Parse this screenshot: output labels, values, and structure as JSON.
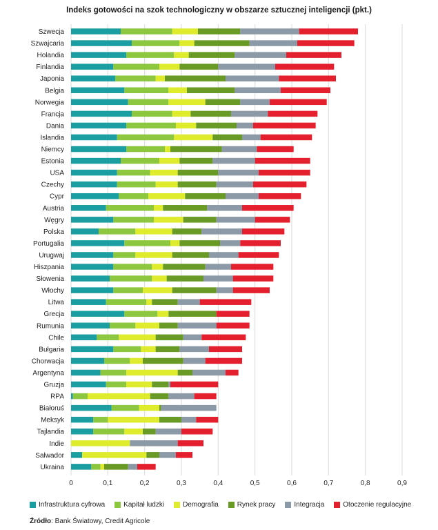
{
  "chart_data": {
    "type": "bar",
    "orientation": "horizontal",
    "stacked": true,
    "title": "Indeks gotowości na szok technologiczny w obszarze sztucznej inteligencji (pkt.)",
    "xlim": [
      0,
      0.9
    ],
    "x_ticks": [
      "0",
      "0,1",
      "0,2",
      "0,3",
      "0,4",
      "0,5",
      "0,6",
      "0,7",
      "0,8",
      "0,9"
    ],
    "grid": "vertical",
    "legend_position": "bottom",
    "categories": [
      "Szwecja",
      "Szwajcaria",
      "Holandia",
      "Finlandia",
      "Japonia",
      "Belgia",
      "Norwegia",
      "Francja",
      "Dania",
      "Islandia",
      "Niemcy",
      "Estonia",
      "USA",
      "Czechy",
      "Cypr",
      "Austria",
      "Węgry",
      "Polska",
      "Portugalia",
      "Urugwaj",
      "Hiszpania",
      "Słowenia",
      "Włochy",
      "Litwa",
      "Grecja",
      "Rumunia",
      "Chile",
      "Bułgaria",
      "Chorwacja",
      "Argentyna",
      "Gruzja",
      "RPA",
      "Białoruś",
      "Meksyk",
      "Tajlandia",
      "Indie",
      "Salwador",
      "Ukraina"
    ],
    "series": [
      {
        "name": "Infrastruktura cyfrowa",
        "color": "#1a9ea1",
        "values": [
          0.135,
          0.165,
          0.15,
          0.115,
          0.12,
          0.145,
          0.155,
          0.165,
          0.15,
          0.125,
          0.15,
          0.135,
          0.125,
          0.125,
          0.13,
          0.095,
          0.115,
          0.075,
          0.145,
          0.115,
          0.115,
          0.105,
          0.115,
          0.095,
          0.145,
          0.105,
          0.07,
          0.115,
          0.09,
          0.08,
          0.095,
          0.005,
          0.11,
          0.06,
          0.06,
          0.0,
          0.03,
          0.055
        ]
      },
      {
        "name": "Kapitał ludzki",
        "color": "#8dc63f",
        "values": [
          0.14,
          0.13,
          0.13,
          0.125,
          0.11,
          0.12,
          0.11,
          0.11,
          0.135,
          0.155,
          0.105,
          0.105,
          0.09,
          0.105,
          0.08,
          0.13,
          0.11,
          0.1,
          0.125,
          0.06,
          0.105,
          0.115,
          0.08,
          0.11,
          0.09,
          0.07,
          0.06,
          0.075,
          0.07,
          0.07,
          0.055,
          0.04,
          0.075,
          0.04,
          0.085,
          0.0,
          0.0,
          0.025
        ]
      },
      {
        "name": "Demografia",
        "color": "#dfec2d",
        "values": [
          0.07,
          0.04,
          0.04,
          0.055,
          0.025,
          0.05,
          0.1,
          0.05,
          0.055,
          0.105,
          0.015,
          0.055,
          0.075,
          0.06,
          0.1,
          0.025,
          0.08,
          0.1,
          0.025,
          0.1,
          0.03,
          0.04,
          0.08,
          0.015,
          0.03,
          0.065,
          0.1,
          0.04,
          0.035,
          0.14,
          0.07,
          0.17,
          0.055,
          0.14,
          0.05,
          0.16,
          0.175,
          0.01
        ]
      },
      {
        "name": "Rynek pracy",
        "color": "#6a9a26",
        "values": [
          0.115,
          0.15,
          0.125,
          0.105,
          0.165,
          0.13,
          0.095,
          0.11,
          0.11,
          0.08,
          0.14,
          0.09,
          0.11,
          0.105,
          0.11,
          0.12,
          0.09,
          0.08,
          0.11,
          0.1,
          0.115,
          0.1,
          0.12,
          0.07,
          0.13,
          0.05,
          0.075,
          0.065,
          0.11,
          0.04,
          0.045,
          0.05,
          0.005,
          0.06,
          0.035,
          0.0,
          0.035,
          0.065
        ]
      },
      {
        "name": "Integracja",
        "color": "#8c9aa8",
        "values": [
          0.16,
          0.13,
          0.14,
          0.155,
          0.145,
          0.125,
          0.08,
          0.1,
          0.045,
          0.05,
          0.095,
          0.115,
          0.11,
          0.1,
          0.09,
          0.095,
          0.105,
          0.11,
          0.055,
          0.08,
          0.07,
          0.08,
          0.045,
          0.06,
          0.0,
          0.105,
          0.05,
          0.08,
          0.06,
          0.09,
          0.005,
          0.07,
          0.15,
          0.04,
          0.07,
          0.13,
          0.045,
          0.025
        ]
      },
      {
        "name": "Otoczenie regulacyjne",
        "color": "#e5202e",
        "values": [
          0.16,
          0.155,
          0.15,
          0.16,
          0.155,
          0.135,
          0.155,
          0.135,
          0.17,
          0.14,
          0.1,
          0.15,
          0.14,
          0.145,
          0.115,
          0.14,
          0.095,
          0.115,
          0.11,
          0.11,
          0.115,
          0.11,
          0.1,
          0.14,
          0.09,
          0.09,
          0.12,
          0.09,
          0.1,
          0.035,
          0.13,
          0.06,
          0.0,
          0.06,
          0.085,
          0.07,
          0.045,
          0.05
        ]
      }
    ]
  },
  "source": {
    "label": "Źródło",
    "text": ": Bank Światowy, Credit Agricole"
  }
}
